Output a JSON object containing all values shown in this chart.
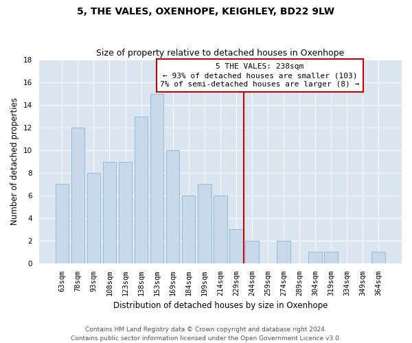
{
  "title": "5, THE VALES, OXENHOPE, KEIGHLEY, BD22 9LW",
  "subtitle": "Size of property relative to detached houses in Oxenhope",
  "xlabel": "Distribution of detached houses by size in Oxenhope",
  "ylabel": "Number of detached properties",
  "bar_labels": [
    "63sqm",
    "78sqm",
    "93sqm",
    "108sqm",
    "123sqm",
    "138sqm",
    "153sqm",
    "169sqm",
    "184sqm",
    "199sqm",
    "214sqm",
    "229sqm",
    "244sqm",
    "259sqm",
    "274sqm",
    "289sqm",
    "304sqm",
    "319sqm",
    "334sqm",
    "349sqm",
    "364sqm"
  ],
  "bar_values": [
    7,
    12,
    8,
    9,
    9,
    13,
    15,
    10,
    6,
    7,
    6,
    3,
    2,
    0,
    2,
    0,
    1,
    1,
    0,
    0,
    1
  ],
  "bar_color": "#c9d9ec",
  "bar_edge_color": "#8fb8d8",
  "vline_x_idx": 12.0,
  "vline_color": "#cc0000",
  "annotation_line1": "5 THE VALES: 238sqm",
  "annotation_line2": "← 93% of detached houses are smaller (103)",
  "annotation_line3": "7% of semi-detached houses are larger (8) →",
  "annotation_box_color": "#ffffff",
  "annotation_box_edge_color": "#cc0000",
  "ylim": [
    0,
    18
  ],
  "yticks": [
    0,
    2,
    4,
    6,
    8,
    10,
    12,
    14,
    16,
    18
  ],
  "background_color": "#dce6f1",
  "footer_line1": "Contains HM Land Registry data © Crown copyright and database right 2024.",
  "footer_line2": "Contains public sector information licensed under the Open Government Licence v3.0.",
  "title_fontsize": 10,
  "subtitle_fontsize": 9,
  "xlabel_fontsize": 8.5,
  "ylabel_fontsize": 8.5,
  "tick_fontsize": 7.5,
  "annotation_fontsize": 8,
  "footer_fontsize": 6.5
}
